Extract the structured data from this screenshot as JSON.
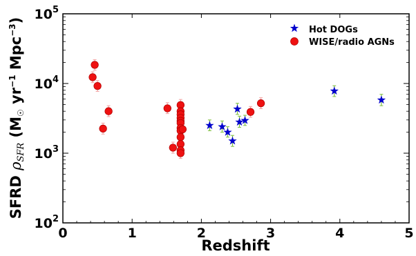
{
  "chart_data": {
    "type": "scatter",
    "title": "",
    "xlabel": "Redshift",
    "ylabel_prefix": "SFRD ",
    "ylabel_symbol": "ρ",
    "ylabel_symbol_sub": "SFR",
    "ylabel_units_open": " (M",
    "ylabel_units_sun": "☉",
    "ylabel_units_yr": " yr",
    "ylabel_units_yr_exp": "−1",
    "ylabel_units_mpc": " Mpc",
    "ylabel_units_mpc_exp": "−3",
    "ylabel_units_close": ")",
    "xlim": [
      0,
      5
    ],
    "ylim": [
      100,
      100000
    ],
    "yscale": "log",
    "grid": false,
    "legend_position": "top-right",
    "x_ticks": [
      {
        "value": 0,
        "label": "0"
      },
      {
        "value": 1,
        "label": "1"
      },
      {
        "value": 2,
        "label": "2"
      },
      {
        "value": 3,
        "label": "3"
      },
      {
        "value": 4,
        "label": "4"
      },
      {
        "value": 5,
        "label": "5"
      }
    ],
    "y_ticks": [
      {
        "value": 100,
        "base": "10",
        "exp": "2"
      },
      {
        "value": 1000,
        "base": "10",
        "exp": "3"
      },
      {
        "value": 10000,
        "base": "10",
        "exp": "4"
      },
      {
        "value": 100000,
        "base": "10",
        "exp": "5"
      }
    ],
    "series": [
      {
        "name": "Hot DOGs",
        "marker": "star",
        "color": "#0000cc",
        "error_color": "#7fbf3f",
        "points": [
          {
            "x": 2.12,
            "y": 2500,
            "lo": 2100,
            "hi": 3000
          },
          {
            "x": 2.3,
            "y": 2400,
            "lo": 2000,
            "hi": 2900
          },
          {
            "x": 2.38,
            "y": 2000,
            "lo": 1700,
            "hi": 2400
          },
          {
            "x": 2.45,
            "y": 1500,
            "lo": 1250,
            "hi": 1800
          },
          {
            "x": 2.52,
            "y": 4300,
            "lo": 3600,
            "hi": 5200
          },
          {
            "x": 2.55,
            "y": 2800,
            "lo": 2350,
            "hi": 3400
          },
          {
            "x": 2.63,
            "y": 2950,
            "lo": 2500,
            "hi": 3500
          },
          {
            "x": 3.92,
            "y": 7800,
            "lo": 6500,
            "hi": 9300
          },
          {
            "x": 4.6,
            "y": 5800,
            "lo": 4800,
            "hi": 7000
          }
        ]
      },
      {
        "name": "WISE/radio AGNs",
        "marker": "circle",
        "color": "#ee1111",
        "error_color": "#f4a0a0",
        "points": [
          {
            "x": 0.43,
            "y": 12300,
            "lo": 10300,
            "hi": 14700
          },
          {
            "x": 0.46,
            "y": 18500,
            "lo": 15500,
            "hi": 22000
          },
          {
            "x": 0.5,
            "y": 9200,
            "lo": 7700,
            "hi": 11000
          },
          {
            "x": 0.58,
            "y": 2250,
            "lo": 1880,
            "hi": 2700
          },
          {
            "x": 0.66,
            "y": 4000,
            "lo": 3350,
            "hi": 4800
          },
          {
            "x": 1.51,
            "y": 4400,
            "lo": 3700,
            "hi": 5300
          },
          {
            "x": 1.59,
            "y": 1200,
            "lo": 1000,
            "hi": 1440
          },
          {
            "x": 1.7,
            "y": 4900,
            "lo": 4100,
            "hi": 5900
          },
          {
            "x": 1.7,
            "y": 4000,
            "lo": 3350,
            "hi": 4800
          },
          {
            "x": 1.7,
            "y": 3600,
            "lo": 3000,
            "hi": 4300
          },
          {
            "x": 1.7,
            "y": 3200,
            "lo": 2700,
            "hi": 3850
          },
          {
            "x": 1.7,
            "y": 2900,
            "lo": 2450,
            "hi": 3500
          },
          {
            "x": 1.7,
            "y": 2700,
            "lo": 2250,
            "hi": 3250
          },
          {
            "x": 1.7,
            "y": 2300,
            "lo": 1930,
            "hi": 2750
          },
          {
            "x": 1.7,
            "y": 2100,
            "lo": 1760,
            "hi": 2520
          },
          {
            "x": 1.7,
            "y": 1700,
            "lo": 1420,
            "hi": 2040
          },
          {
            "x": 1.7,
            "y": 1350,
            "lo": 1130,
            "hi": 1620
          },
          {
            "x": 1.7,
            "y": 1100,
            "lo": 920,
            "hi": 1320
          },
          {
            "x": 1.7,
            "y": 1000,
            "lo": 840,
            "hi": 1200
          },
          {
            "x": 1.73,
            "y": 2200,
            "lo": 1840,
            "hi": 2640
          },
          {
            "x": 2.71,
            "y": 3900,
            "lo": 3270,
            "hi": 4680
          },
          {
            "x": 2.86,
            "y": 5200,
            "lo": 4350,
            "hi": 6250
          }
        ]
      }
    ]
  }
}
